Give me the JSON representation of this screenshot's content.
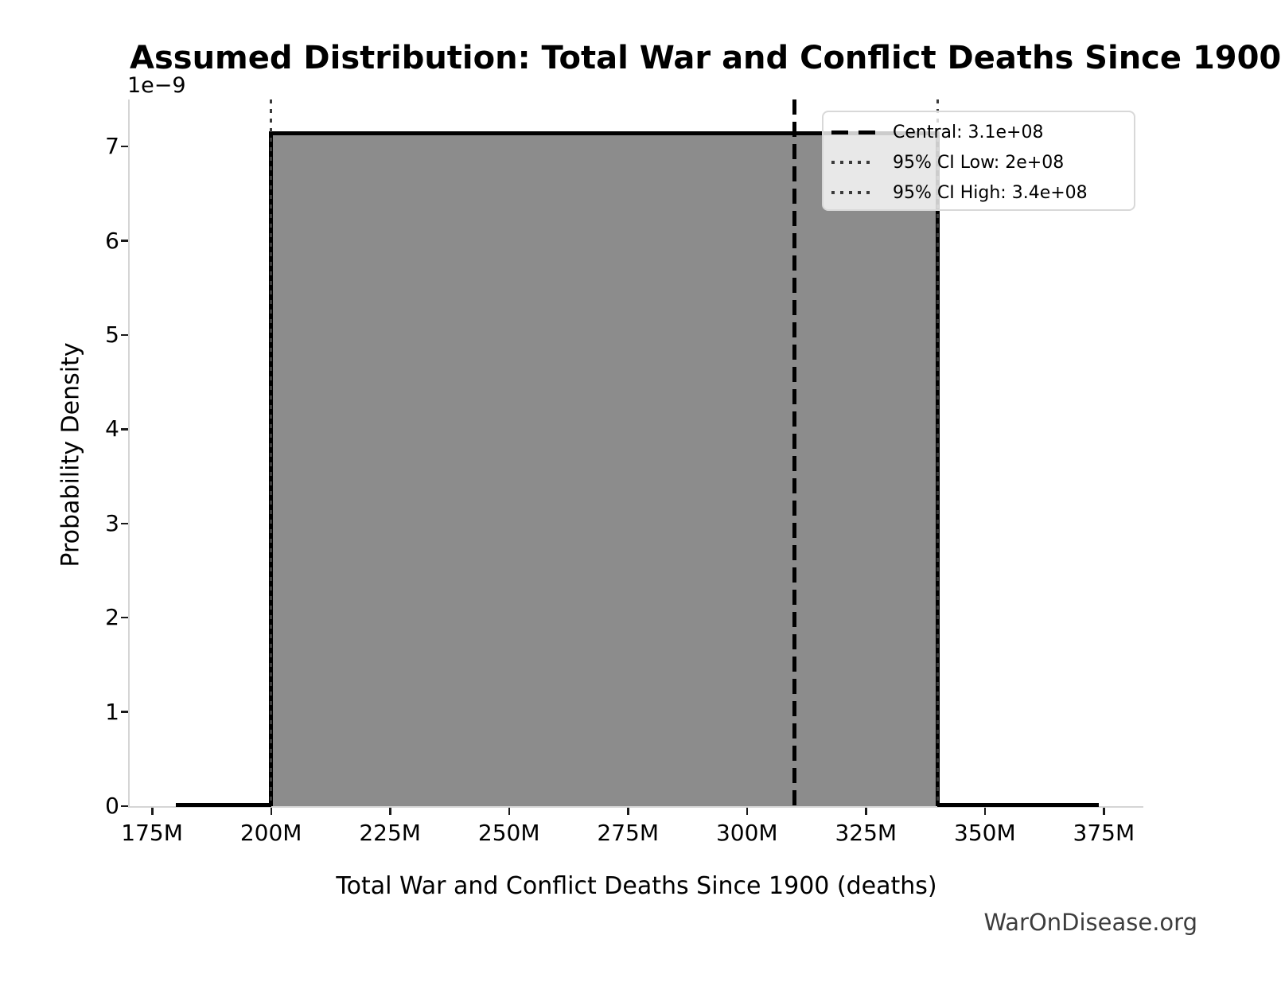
{
  "figure": {
    "title": "Assumed Distribution: Total War and Conflict Deaths Since 1900",
    "watermark": "WarOnDisease.org"
  },
  "chart_data": {
    "type": "area",
    "subtype": "uniform-distribution-pdf",
    "title": "Assumed Distribution: Total War and Conflict Deaths Since 1900",
    "xlabel": "Total War and Conflict Deaths Since 1900 (deaths)",
    "ylabel": "Probability Density",
    "y_scale_offset_label": "1e−9",
    "grid": false,
    "legend_position": "upper right",
    "xlim": [
      170300000,
      383300000
    ],
    "ylim": [
      0,
      7.5e-09
    ],
    "support": {
      "low": 200000000,
      "high": 340000000
    },
    "density_height": 7.143e-09,
    "curve_zero_extent": {
      "left_start": 180000000,
      "right_end": 374000000
    },
    "markers": [
      {
        "id": "central",
        "value": 310000000,
        "label": "Central: 3.1e+08",
        "style": "dashed",
        "color": "#000000"
      },
      {
        "id": "ci-low",
        "value": 200000000,
        "label": "95% CI Low: 2e+08",
        "style": "dotted",
        "color": "#3a3a3a"
      },
      {
        "id": "ci-high",
        "value": 340000000,
        "label": "95% CI High: 3.4e+08",
        "style": "dotted",
        "color": "#3a3a3a"
      }
    ],
    "legend": [
      {
        "label": "Central: 3.1e+08",
        "style": "dashed",
        "color": "#000000"
      },
      {
        "label": "95% CI Low: 2e+08",
        "style": "dotted",
        "color": "#3a3a3a"
      },
      {
        "label": "95% CI High: 3.4e+08",
        "style": "dotted",
        "color": "#3a3a3a"
      }
    ],
    "x_ticks": [
      {
        "value": 175000000,
        "label": "175M"
      },
      {
        "value": 200000000,
        "label": "200M"
      },
      {
        "value": 225000000,
        "label": "225M"
      },
      {
        "value": 250000000,
        "label": "250M"
      },
      {
        "value": 275000000,
        "label": "275M"
      },
      {
        "value": 300000000,
        "label": "300M"
      },
      {
        "value": 325000000,
        "label": "325M"
      },
      {
        "value": 350000000,
        "label": "350M"
      },
      {
        "value": 375000000,
        "label": "375M"
      }
    ],
    "y_ticks": [
      {
        "value": 0,
        "label": "0"
      },
      {
        "value": 1e-09,
        "label": "1"
      },
      {
        "value": 2e-09,
        "label": "2"
      },
      {
        "value": 3e-09,
        "label": "3"
      },
      {
        "value": 4e-09,
        "label": "4"
      },
      {
        "value": 5e-09,
        "label": "5"
      },
      {
        "value": 6e-09,
        "label": "6"
      },
      {
        "value": 7e-09,
        "label": "7"
      }
    ],
    "colors": {
      "fill": "#8c8c8c",
      "edge": "#000000",
      "spine": "#d5d5d5",
      "tick": "#1a1a1a",
      "watermark": "#3d3d3d"
    }
  }
}
